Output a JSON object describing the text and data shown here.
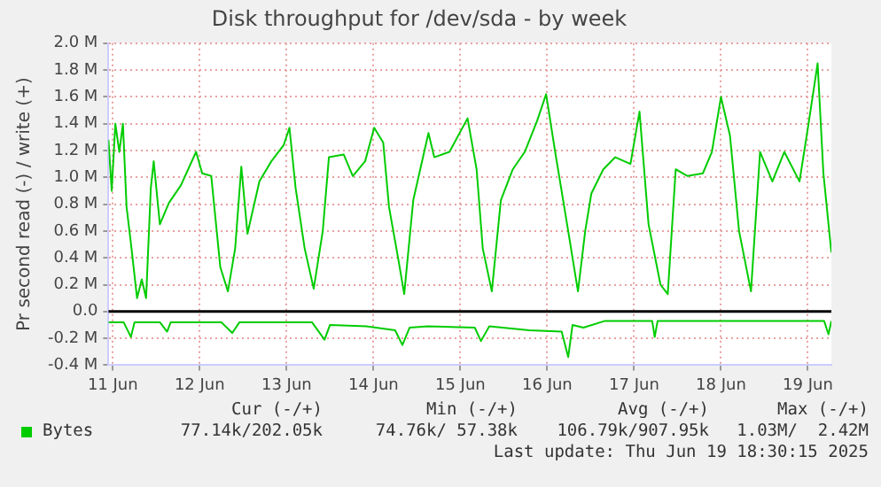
{
  "chart_data": {
    "type": "line",
    "title": "Disk throughput for /dev/sda - by week",
    "ylabel": "Pr second read (-) / write (+)",
    "xlim": [
      "2025-06-10T22:48",
      "2025-06-19T06:30"
    ],
    "xticks": [
      {
        "value": "2025-06-11",
        "label": "11 Jun"
      },
      {
        "value": "2025-06-12",
        "label": "12 Jun"
      },
      {
        "value": "2025-06-13",
        "label": "13 Jun"
      },
      {
        "value": "2025-06-14",
        "label": "14 Jun"
      },
      {
        "value": "2025-06-15",
        "label": "15 Jun"
      },
      {
        "value": "2025-06-16",
        "label": "16 Jun"
      },
      {
        "value": "2025-06-17",
        "label": "17 Jun"
      },
      {
        "value": "2025-06-18",
        "label": "18 Jun"
      },
      {
        "value": "2025-06-19",
        "label": "19 Jun"
      }
    ],
    "ylim": [
      -0.4,
      2.0
    ],
    "yticks": [
      {
        "value": -0.4,
        "label": "-0.4 M"
      },
      {
        "value": -0.2,
        "label": "-0.2 M"
      },
      {
        "value": 0,
        "label": "0.0"
      },
      {
        "value": 0.2,
        "label": "0.2 M"
      },
      {
        "value": 0.4,
        "label": "0.4 M"
      },
      {
        "value": 0.6,
        "label": "0.6 M"
      },
      {
        "value": 0.8,
        "label": "0.8 M"
      },
      {
        "value": 1.0,
        "label": "1.0 M"
      },
      {
        "value": 1.2,
        "label": "1.2 M"
      },
      {
        "value": 1.4,
        "label": "1.4 M"
      },
      {
        "value": 1.6,
        "label": "1.6 M"
      },
      {
        "value": 1.8,
        "label": "1.8 M"
      },
      {
        "value": 2.0,
        "label": "2.0 M"
      }
    ],
    "grid": true,
    "legend": "bottom left",
    "marker": "none",
    "line_style": "solid",
    "ref_lines": [
      {
        "axis": "y",
        "value": 0,
        "color": "#000000"
      }
    ],
    "series": [
      {
        "name": "Bytes",
        "color": "#00cc00",
        "x": [
          "2025-06-10T22:48",
          "2025-06-10T23:42",
          "2025-06-11T00:42",
          "2025-06-11T01:48",
          "2025-06-11T02:48",
          "2025-06-11T03:48",
          "2025-06-11T05:00",
          "2025-06-11T06:42",
          "2025-06-11T08:00",
          "2025-06-11T09:12",
          "2025-06-11T10:30",
          "2025-06-11T11:18",
          "2025-06-11T13:00",
          "2025-06-11T15:30",
          "2025-06-11T18:48",
          "2025-06-11T23:00",
          "2025-06-12T00:42",
          "2025-06-12T03:12",
          "2025-06-12T05:42",
          "2025-06-12T07:48",
          "2025-06-12T09:48",
          "2025-06-12T11:30",
          "2025-06-12T13:12",
          "2025-06-12T16:30",
          "2025-06-12T19:48",
          "2025-06-12T23:12",
          "2025-06-13T00:48",
          "2025-06-13T02:30",
          "2025-06-13T05:00",
          "2025-06-13T07:30",
          "2025-06-13T10:00",
          "2025-06-13T11:42",
          "2025-06-13T15:48",
          "2025-06-13T18:18",
          "2025-06-13T21:42",
          "2025-06-14T00:12",
          "2025-06-14T02:42",
          "2025-06-14T04:18",
          "2025-06-14T06:48",
          "2025-06-14T08:30",
          "2025-06-14T11:00",
          "2025-06-14T15:12",
          "2025-06-14T16:48",
          "2025-06-14T21:00",
          "2025-06-15T02:00",
          "2025-06-15T04:30",
          "2025-06-15T06:12",
          "2025-06-15T08:42",
          "2025-06-15T11:12",
          "2025-06-15T14:30",
          "2025-06-15T17:48",
          "2025-06-15T21:12",
          "2025-06-15T23:42",
          "2025-06-16T02:12",
          "2025-06-16T05:30",
          "2025-06-16T08:30",
          "2025-06-16T10:30",
          "2025-06-16T12:12",
          "2025-06-16T15:30",
          "2025-06-16T18:48",
          "2025-06-16T23:00",
          "2025-06-17T01:30",
          "2025-06-17T04:00",
          "2025-06-17T07:18",
          "2025-06-17T09:18",
          "2025-06-17T11:30",
          "2025-06-17T14:48",
          "2025-06-17T19:00",
          "2025-06-17T21:30",
          "2025-06-18T00:00",
          "2025-06-18T02:30",
          "2025-06-18T05:00",
          "2025-06-18T08:18",
          "2025-06-18T10:48",
          "2025-06-18T14:12",
          "2025-06-18T17:30",
          "2025-06-18T21:42",
          "2025-06-19T00:12",
          "2025-06-19T02:42",
          "2025-06-19T04:18",
          "2025-06-19T06:30"
        ],
        "values": [
          1.28,
          0.9,
          1.4,
          1.19,
          1.4,
          0.78,
          0.51,
          0.1,
          0.24,
          0.1,
          0.92,
          1.12,
          0.65,
          0.81,
          0.94,
          1.19,
          1.03,
          1.01,
          0.33,
          0.15,
          0.47,
          1.08,
          0.58,
          0.97,
          1.12,
          1.24,
          1.37,
          0.92,
          0.47,
          0.17,
          0.6,
          1.15,
          1.17,
          1.01,
          1.12,
          1.37,
          1.26,
          0.78,
          0.4,
          0.13,
          0.83,
          1.33,
          1.15,
          1.19,
          1.44,
          1.06,
          0.47,
          0.15,
          0.83,
          1.06,
          1.19,
          1.42,
          1.62,
          1.19,
          0.65,
          0.15,
          0.6,
          0.88,
          1.06,
          1.15,
          1.1,
          1.49,
          0.65,
          0.2,
          0.13,
          1.06,
          1.01,
          1.03,
          1.19,
          1.6,
          1.31,
          0.6,
          0.15,
          1.19,
          0.97,
          1.19,
          0.97,
          1.4,
          1.85,
          1.03,
          0.44
        ]
      },
      {
        "color": "#00cc00",
        "x": [
          "2025-06-10T22:48",
          "2025-06-11T03:00",
          "2025-06-11T05:00",
          "2025-06-11T06:00",
          "2025-06-11T13:00",
          "2025-06-11T15:00",
          "2025-06-11T16:00",
          "2025-06-12T06:00",
          "2025-06-12T09:00",
          "2025-06-12T11:00",
          "2025-06-13T07:00",
          "2025-06-13T10:30",
          "2025-06-13T12:00",
          "2025-06-13T22:00",
          "2025-06-14T06:00",
          "2025-06-14T08:00",
          "2025-06-14T10:00",
          "2025-06-14T15:00",
          "2025-06-15T04:00",
          "2025-06-15T05:42",
          "2025-06-15T08:00",
          "2025-06-15T19:00",
          "2025-06-16T04:00",
          "2025-06-16T05:48",
          "2025-06-16T07:00",
          "2025-06-16T10:00",
          "2025-06-16T16:00",
          "2025-06-17T05:00",
          "2025-06-17T05:42",
          "2025-06-17T06:30",
          "2025-06-19T04:30",
          "2025-06-19T05:42",
          "2025-06-19T06:30"
        ],
        "values": [
          -0.08,
          -0.08,
          -0.19,
          -0.08,
          -0.08,
          -0.15,
          -0.08,
          -0.08,
          -0.16,
          -0.08,
          -0.08,
          -0.21,
          -0.1,
          -0.11,
          -0.14,
          -0.25,
          -0.12,
          -0.11,
          -0.12,
          -0.22,
          -0.11,
          -0.14,
          -0.15,
          -0.34,
          -0.1,
          -0.12,
          -0.07,
          -0.07,
          -0.19,
          -0.07,
          -0.07,
          -0.17,
          -0.07
        ]
      }
    ],
    "annotations": [
      "Cur (-/+)",
      "Min (-/+)",
      "Avg (-/+)",
      "Max (-/+)",
      "77.14k/202.05k",
      "74.76k/ 57.38k",
      "106.79k/907.95k",
      "1.03M/  2.42M",
      "Last update: Thu Jun 19 18:30:15 2025"
    ]
  }
}
